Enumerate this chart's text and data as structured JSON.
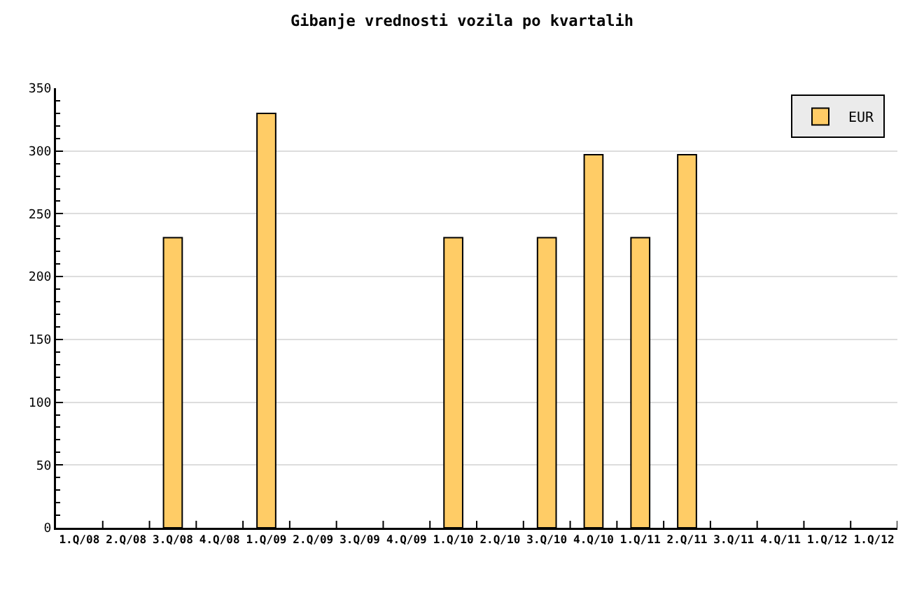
{
  "chart_data": {
    "type": "bar",
    "title": "Gibanje vrednosti vozila po kvartalih",
    "categories": [
      "1.Q/08",
      "2.Q/08",
      "3.Q/08",
      "4.Q/08",
      "1.Q/09",
      "2.Q/09",
      "3.Q/09",
      "4.Q/09",
      "1.Q/10",
      "2.Q/10",
      "3.Q/10",
      "4.Q/10",
      "1.Q/11",
      "2.Q/11",
      "3.Q/11",
      "4.Q/11",
      "1.Q/12",
      "1.Q/12"
    ],
    "series": [
      {
        "name": "EUR",
        "color": "#ffcc66",
        "values": [
          null,
          null,
          231,
          null,
          330,
          null,
          null,
          null,
          231,
          null,
          231,
          297,
          231,
          297,
          null,
          null,
          null,
          null
        ]
      }
    ],
    "ylim": [
      0,
      350
    ],
    "yticks": [
      0,
      50,
      100,
      150,
      200,
      250,
      300,
      350
    ],
    "grid": "y",
    "legend": "top right"
  }
}
